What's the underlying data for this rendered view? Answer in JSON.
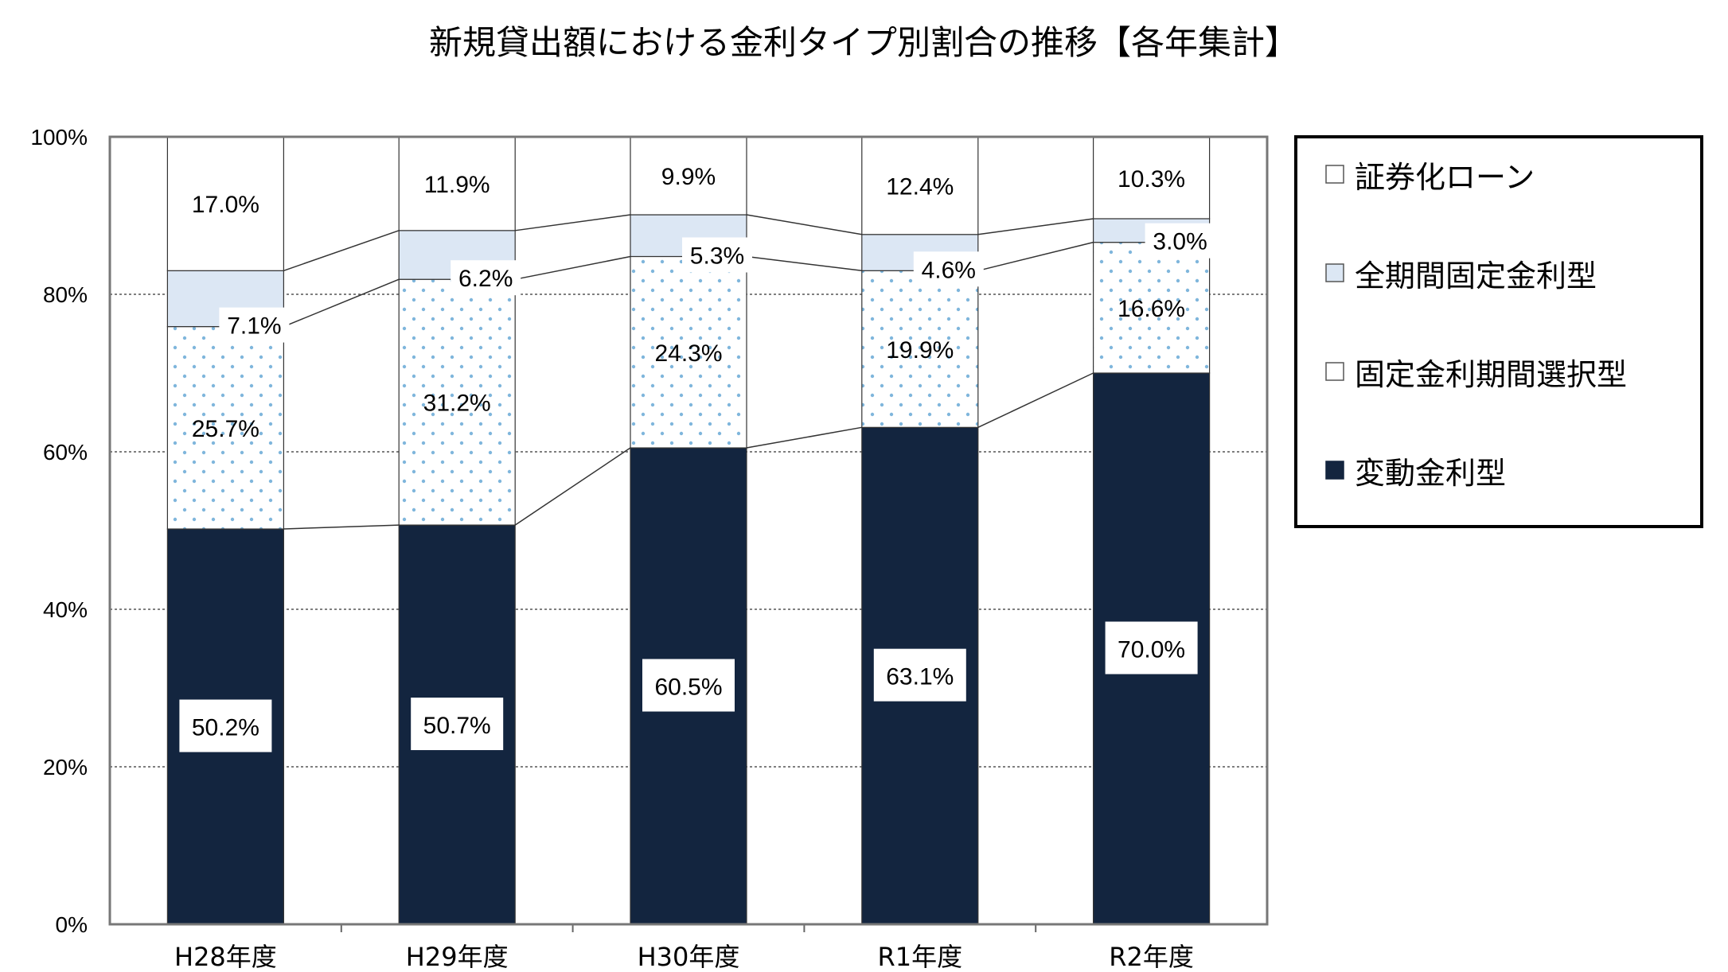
{
  "chart_data": {
    "type": "bar",
    "stacked": true,
    "title": "新規貸出額における金利タイプ別割合の推移【各年集計】",
    "categories": [
      "H28年度",
      "H29年度",
      "H30年度",
      "R1年度",
      "R2年度"
    ],
    "y_ticks": [
      "0%",
      "20%",
      "40%",
      "60%",
      "80%",
      "100%"
    ],
    "ylim": [
      0,
      100
    ],
    "grid": true,
    "legend_position": "right",
    "series": [
      {
        "name": "変動金利型",
        "values": [
          50.2,
          50.7,
          60.5,
          63.1,
          70.0
        ],
        "labels": [
          "50.2%",
          "50.7%",
          "60.5%",
          "63.1%",
          "70.0%"
        ],
        "color": "#13253f",
        "legend_marker": "■"
      },
      {
        "name": "固定金利期間選択型",
        "values": [
          25.7,
          31.2,
          24.3,
          19.9,
          16.6
        ],
        "labels": [
          "25.7%",
          "31.2%",
          "24.3%",
          "19.9%",
          "16.6%"
        ],
        "color": "#7fb6dc",
        "legend_marker": "□"
      },
      {
        "name": "全期間固定金利型",
        "values": [
          7.1,
          6.2,
          5.3,
          4.6,
          3.0
        ],
        "labels": [
          "7.1%",
          "6.2%",
          "5.3%",
          "4.6%",
          "3.0%"
        ],
        "color": "#dce7f4",
        "legend_marker": "□"
      },
      {
        "name": "証券化ローン",
        "values": [
          17.0,
          11.9,
          9.9,
          12.4,
          10.3
        ],
        "labels": [
          "17.0%",
          "11.9%",
          "9.9%",
          "12.4%",
          "10.3%"
        ],
        "color": "#ffffff",
        "legend_marker": "□"
      }
    ]
  }
}
